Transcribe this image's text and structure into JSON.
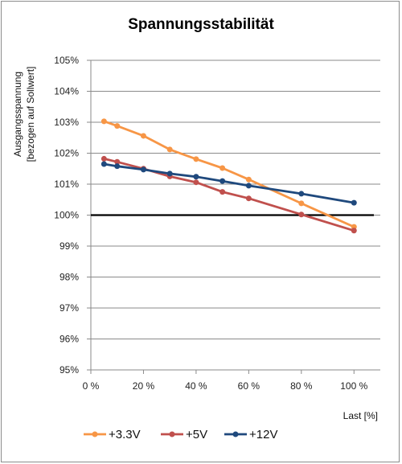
{
  "chart_data": {
    "type": "line",
    "title": "Spannungsstabilität",
    "xlabel": "Last [%]",
    "ylabel_line1": "Ausgangsspannung",
    "ylabel_line2": "[bezogen auf Sollwert]",
    "xlim": [
      0,
      110
    ],
    "ylim": [
      95,
      105
    ],
    "x_ticks": [
      0,
      20,
      40,
      60,
      80,
      100
    ],
    "x_tick_labels": [
      "0 %",
      "20 %",
      "40 %",
      "60 %",
      "80 %",
      "100 %"
    ],
    "y_ticks": [
      95,
      96,
      97,
      98,
      99,
      100,
      101,
      102,
      103,
      104,
      105
    ],
    "y_tick_labels": [
      "95%",
      "96%",
      "97%",
      "98%",
      "99%",
      "100%",
      "101%",
      "102%",
      "103%",
      "104%",
      "105%"
    ],
    "grid": "horizontal",
    "legend_position": "bottom",
    "reference_line": {
      "y": 100,
      "color": "#000000"
    },
    "series": [
      {
        "name": "+3.3V",
        "color": "#F79646",
        "x": [
          5,
          10,
          20,
          30,
          40,
          50,
          60,
          80,
          100
        ],
        "y": [
          103.03,
          102.88,
          102.56,
          102.12,
          101.81,
          101.52,
          101.15,
          100.38,
          99.62
        ]
      },
      {
        "name": "+5V",
        "color": "#C0504D",
        "x": [
          5,
          10,
          20,
          30,
          40,
          50,
          60,
          80,
          100
        ],
        "y": [
          101.82,
          101.72,
          101.5,
          101.25,
          101.06,
          100.75,
          100.54,
          100.02,
          99.5
        ]
      },
      {
        "name": "+12V",
        "color": "#1F497D",
        "x": [
          5,
          10,
          20,
          30,
          40,
          50,
          60,
          80,
          100
        ],
        "y": [
          101.65,
          101.58,
          101.47,
          101.34,
          101.24,
          101.1,
          100.95,
          100.69,
          100.4
        ]
      }
    ]
  }
}
